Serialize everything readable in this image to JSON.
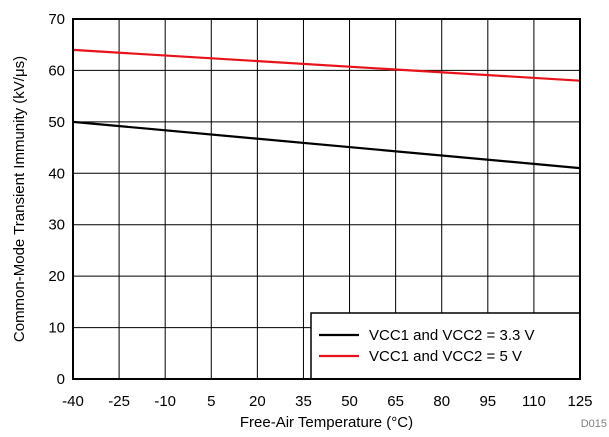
{
  "chart_data": {
    "type": "line",
    "xlabel": "Free-Air Temperature (°C)",
    "ylabel": "Common-Mode Transient Immunity (kV/μs)",
    "xlim": [
      -40,
      125
    ],
    "ylim": [
      0,
      70
    ],
    "xticks": [
      -40,
      -25,
      -10,
      5,
      20,
      35,
      50,
      65,
      80,
      95,
      110,
      125
    ],
    "yticks": [
      0,
      10,
      20,
      30,
      40,
      50,
      60,
      70
    ],
    "grid": true,
    "legend_position": "bottom-right",
    "series": [
      {
        "name": "VCC1 and VCC2 = 3.3 V",
        "color": "#000000",
        "x": [
          -40,
          125
        ],
        "y": [
          50,
          41
        ]
      },
      {
        "name": "VCC1 and VCC2 = 5 V",
        "color": "#e8121a",
        "x": [
          -40,
          125
        ],
        "y": [
          64,
          58
        ]
      }
    ],
    "figure_id": "D015"
  }
}
